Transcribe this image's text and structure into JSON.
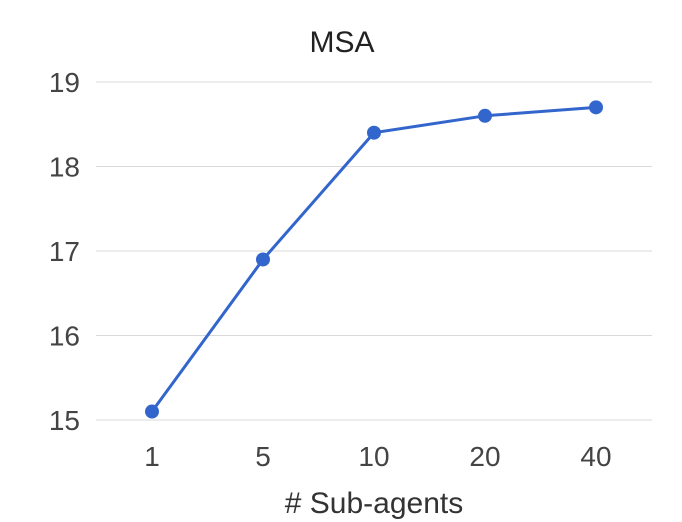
{
  "chart_data": {
    "type": "line",
    "title": "MSA",
    "xlabel": "# Sub-agents",
    "ylabel": "",
    "categories": [
      "1",
      "5",
      "10",
      "20",
      "40"
    ],
    "series": [
      {
        "values": [
          15.1,
          16.9,
          18.4,
          18.6,
          18.7
        ],
        "color": "#3366cc"
      }
    ],
    "ylim": [
      15,
      19
    ],
    "yticks": [
      "15",
      "16",
      "17",
      "18",
      "19"
    ],
    "grid": true,
    "legend": "none"
  }
}
